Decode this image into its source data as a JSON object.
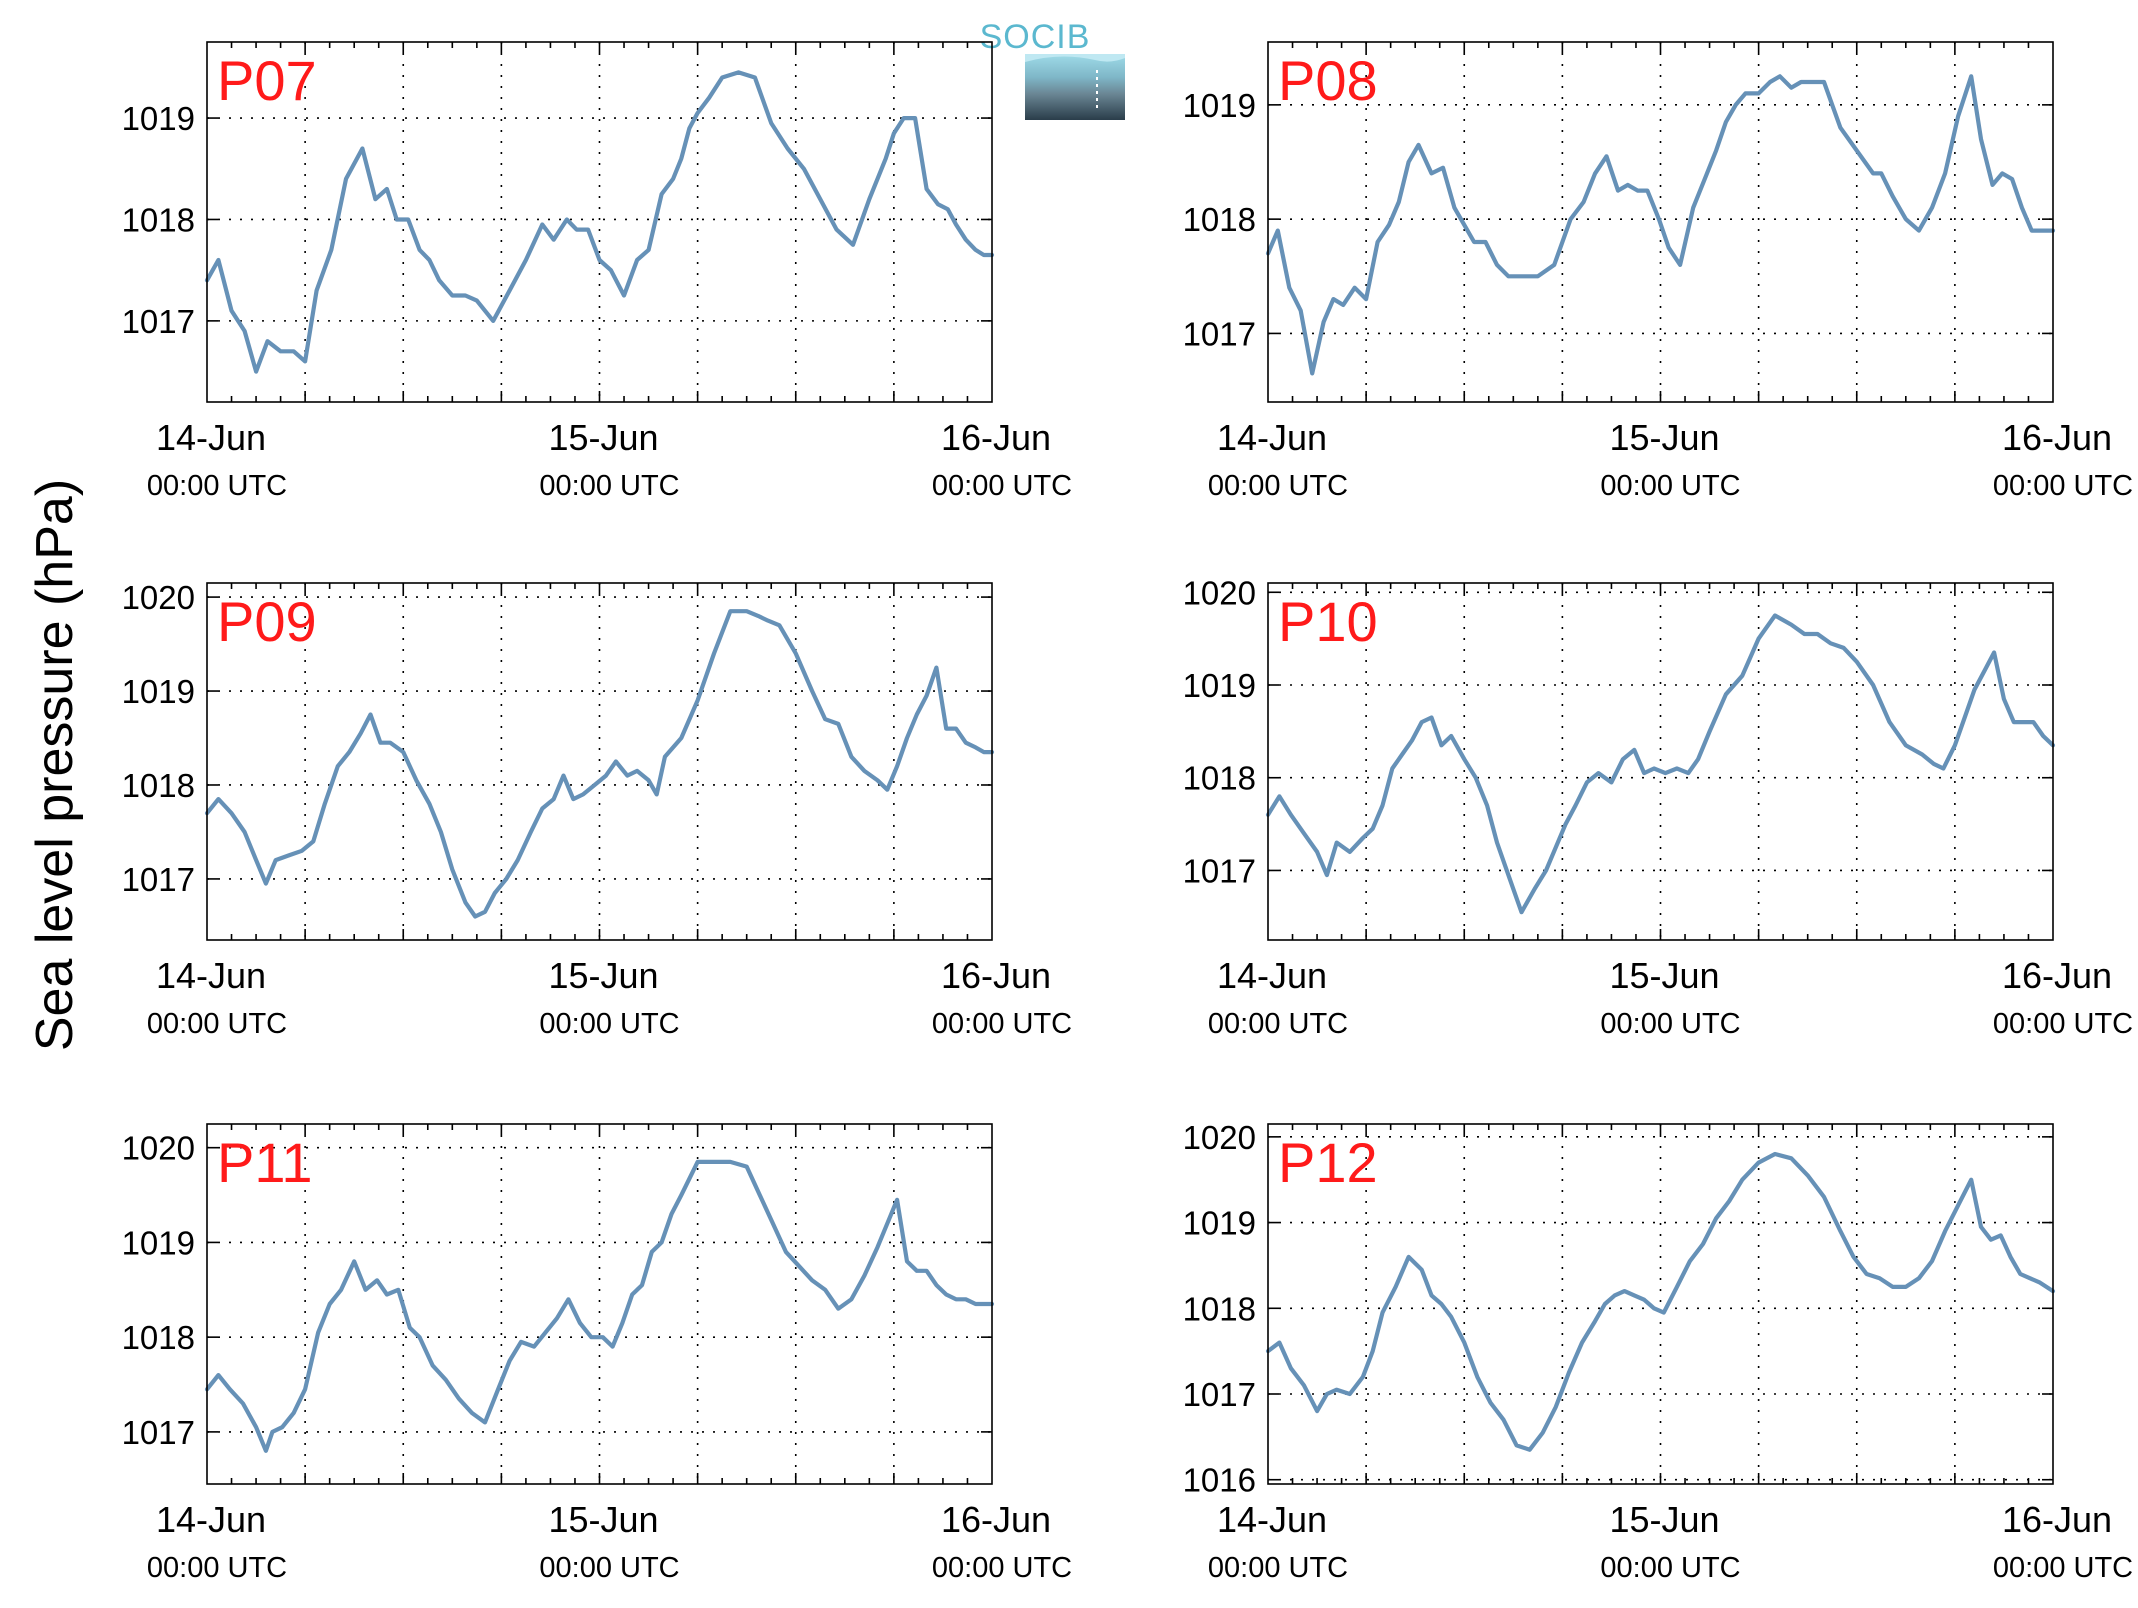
{
  "ylabel": "Sea level pressure (hPa)",
  "logo": {
    "text": "SOCIB"
  },
  "colors": {
    "line": "#6691b7",
    "station": "#ff1a1a",
    "frame": "#000000",
    "grid": "#000000"
  },
  "chart_data": [
    {
      "type": "line",
      "station": "P07",
      "ylim": [
        1016.2,
        1019.75
      ],
      "yticks": [
        1017,
        1018,
        1019
      ],
      "xlim": [
        0,
        48
      ],
      "x_major": [
        0,
        24,
        48
      ],
      "grid": true,
      "x_labels": [
        {
          "x": 0,
          "date": "14-Jun",
          "time": "00:00 UTC"
        },
        {
          "x": 24,
          "date": "15-Jun",
          "time": "00:00 UTC"
        },
        {
          "x": 48,
          "date": "16-Jun",
          "time": "00:00 UTC"
        }
      ],
      "x": [
        0,
        0.7,
        1.5,
        2.3,
        3,
        3.7,
        4.5,
        5.3,
        6,
        6.7,
        7.6,
        8.5,
        9.5,
        10.3,
        11,
        11.6,
        12.3,
        13,
        13.6,
        14.2,
        15,
        15.8,
        16.5,
        17.5,
        18.5,
        19.5,
        20.5,
        21.2,
        22,
        22.6,
        23.3,
        24,
        24.7,
        25.5,
        26.3,
        27,
        27.8,
        28.5,
        29,
        29.5,
        30,
        30.7,
        31.5,
        32.5,
        33.5,
        34.5,
        35.5,
        36.5,
        37.5,
        38.5,
        39.5,
        40.5,
        41.5,
        42,
        42.6,
        43.3,
        44,
        44.7,
        45.3,
        45.8,
        46.4,
        47,
        47.5,
        48
      ],
      "y": [
        1017.4,
        1017.6,
        1017.1,
        1016.9,
        1016.5,
        1016.8,
        1016.7,
        1016.7,
        1016.6,
        1017.3,
        1017.7,
        1018.4,
        1018.7,
        1018.2,
        1018.3,
        1018.0,
        1018.0,
        1017.7,
        1017.6,
        1017.4,
        1017.25,
        1017.25,
        1017.2,
        1017.0,
        1017.3,
        1017.6,
        1017.95,
        1017.8,
        1018.0,
        1017.9,
        1017.9,
        1017.6,
        1017.5,
        1017.25,
        1017.6,
        1017.7,
        1018.25,
        1018.4,
        1018.6,
        1018.9,
        1019.05,
        1019.2,
        1019.4,
        1019.45,
        1019.4,
        1018.95,
        1018.7,
        1018.5,
        1018.2,
        1017.9,
        1017.75,
        1018.2,
        1018.6,
        1018.85,
        1019.0,
        1019.0,
        1018.3,
        1018.15,
        1018.1,
        1017.95,
        1017.8,
        1017.7,
        1017.65,
        1017.65
      ]
    },
    {
      "type": "line",
      "station": "P08",
      "ylim": [
        1016.4,
        1019.55
      ],
      "yticks": [
        1017,
        1018,
        1019
      ],
      "xlim": [
        0,
        48
      ],
      "x_major": [
        0,
        24,
        48
      ],
      "grid": true,
      "x_labels": [
        {
          "x": 0,
          "date": "14-Jun",
          "time": "00:00 UTC"
        },
        {
          "x": 24,
          "date": "15-Jun",
          "time": "00:00 UTC"
        },
        {
          "x": 48,
          "date": "16-Jun",
          "time": "00:00 UTC"
        }
      ],
      "x": [
        0,
        0.6,
        1.3,
        2,
        2.7,
        3.4,
        4,
        4.6,
        5.3,
        6,
        6.7,
        7.4,
        8,
        8.6,
        9.2,
        10,
        10.7,
        11.4,
        12,
        12.6,
        13.3,
        14,
        14.7,
        15.5,
        16.5,
        17.5,
        18.5,
        19.3,
        20,
        20.7,
        21.4,
        22,
        22.6,
        23.2,
        23.9,
        24.5,
        25.2,
        26,
        26.7,
        27.4,
        28,
        28.6,
        29.2,
        30,
        30.7,
        31.3,
        32,
        32.6,
        33.3,
        34,
        35,
        36,
        37,
        37.5,
        38.2,
        39,
        39.8,
        40.6,
        41.4,
        42.2,
        43,
        43.6,
        44.3,
        44.9,
        45.5,
        46.1,
        46.7,
        47.3,
        48
      ],
      "y": [
        1017.7,
        1017.9,
        1017.4,
        1017.2,
        1016.65,
        1017.1,
        1017.3,
        1017.25,
        1017.4,
        1017.3,
        1017.8,
        1017.95,
        1018.15,
        1018.5,
        1018.65,
        1018.4,
        1018.45,
        1018.1,
        1017.95,
        1017.8,
        1017.8,
        1017.6,
        1017.5,
        1017.5,
        1017.5,
        1017.6,
        1018.0,
        1018.15,
        1018.4,
        1018.55,
        1018.25,
        1018.3,
        1018.25,
        1018.25,
        1018.0,
        1017.75,
        1017.6,
        1018.1,
        1018.35,
        1018.6,
        1018.85,
        1019.0,
        1019.1,
        1019.1,
        1019.2,
        1019.25,
        1019.15,
        1019.2,
        1019.2,
        1019.2,
        1018.8,
        1018.6,
        1018.4,
        1018.4,
        1018.2,
        1018.0,
        1017.9,
        1018.1,
        1018.4,
        1018.9,
        1019.25,
        1018.7,
        1018.3,
        1018.4,
        1018.35,
        1018.1,
        1017.9,
        1017.9,
        1017.9
      ]
    },
    {
      "type": "line",
      "station": "P09",
      "ylim": [
        1016.35,
        1020.15
      ],
      "yticks": [
        1017,
        1018,
        1019,
        1020
      ],
      "xlim": [
        0,
        48
      ],
      "x_major": [
        0,
        24,
        48
      ],
      "grid": true,
      "x_labels": [
        {
          "x": 0,
          "date": "14-Jun",
          "time": "00:00 UTC"
        },
        {
          "x": 24,
          "date": "15-Jun",
          "time": "00:00 UTC"
        },
        {
          "x": 48,
          "date": "16-Jun",
          "time": "00:00 UTC"
        }
      ],
      "x": [
        0,
        0.7,
        1.5,
        2.3,
        3,
        3.6,
        4.2,
        5,
        5.8,
        6.5,
        7.2,
        8,
        8.7,
        9.4,
        10,
        10.6,
        11.2,
        12,
        12.8,
        13.6,
        14.3,
        15,
        15.8,
        16.4,
        17,
        17.6,
        18.3,
        19,
        19.8,
        20.5,
        21.2,
        21.8,
        22.4,
        23,
        23.7,
        24.4,
        25,
        25.7,
        26.3,
        27,
        27.5,
        28,
        29,
        30,
        31,
        32,
        33,
        33.7,
        34.3,
        35,
        36,
        37,
        37.8,
        38.6,
        39.4,
        40.2,
        41,
        41.6,
        42.2,
        42.8,
        43.4,
        44,
        44.6,
        45.2,
        45.8,
        46.4,
        47,
        47.5,
        48
      ],
      "y": [
        1017.7,
        1017.85,
        1017.7,
        1017.5,
        1017.2,
        1016.95,
        1017.2,
        1017.25,
        1017.3,
        1017.4,
        1017.8,
        1018.2,
        1018.35,
        1018.55,
        1018.75,
        1018.45,
        1018.45,
        1018.35,
        1018.05,
        1017.8,
        1017.5,
        1017.1,
        1016.75,
        1016.6,
        1016.65,
        1016.85,
        1017.0,
        1017.2,
        1017.5,
        1017.75,
        1017.85,
        1018.1,
        1017.85,
        1017.9,
        1018.0,
        1018.1,
        1018.25,
        1018.1,
        1018.15,
        1018.05,
        1017.9,
        1018.3,
        1018.5,
        1018.9,
        1019.4,
        1019.85,
        1019.85,
        1019.8,
        1019.75,
        1019.7,
        1019.4,
        1019.0,
        1018.7,
        1018.65,
        1018.3,
        1018.15,
        1018.05,
        1017.95,
        1018.2,
        1018.5,
        1018.75,
        1018.95,
        1019.25,
        1018.6,
        1018.6,
        1018.45,
        1018.4,
        1018.35,
        1018.35
      ]
    },
    {
      "type": "line",
      "station": "P10",
      "ylim": [
        1016.25,
        1020.1
      ],
      "yticks": [
        1017,
        1018,
        1019,
        1020
      ],
      "xlim": [
        0,
        48
      ],
      "x_major": [
        0,
        24,
        48
      ],
      "grid": true,
      "x_labels": [
        {
          "x": 0,
          "date": "14-Jun",
          "time": "00:00 UTC"
        },
        {
          "x": 24,
          "date": "15-Jun",
          "time": "00:00 UTC"
        },
        {
          "x": 48,
          "date": "16-Jun",
          "time": "00:00 UTC"
        }
      ],
      "x": [
        0,
        0.7,
        1.4,
        2.2,
        3,
        3.6,
        4.2,
        5,
        5.8,
        6.4,
        7,
        7.6,
        8.2,
        8.8,
        9.4,
        10,
        10.6,
        11.2,
        12,
        12.7,
        13.4,
        14,
        14.7,
        15.5,
        16.3,
        17,
        17.6,
        18.2,
        18.8,
        19.5,
        20.2,
        21,
        21.7,
        22.4,
        23,
        23.6,
        24.3,
        25,
        25.7,
        26.3,
        27,
        28,
        29,
        30,
        31,
        32,
        32.8,
        33.6,
        34.4,
        35.2,
        36,
        37,
        38,
        39,
        40,
        40.7,
        41.3,
        42,
        42.6,
        43.2,
        43.8,
        44.4,
        45,
        45.6,
        46.2,
        46.8,
        47.4,
        48
      ],
      "y": [
        1017.6,
        1017.8,
        1017.6,
        1017.4,
        1017.2,
        1016.95,
        1017.3,
        1017.2,
        1017.35,
        1017.45,
        1017.7,
        1018.1,
        1018.25,
        1018.4,
        1018.6,
        1018.65,
        1018.35,
        1018.45,
        1018.2,
        1018.0,
        1017.7,
        1017.3,
        1016.95,
        1016.55,
        1016.8,
        1017.0,
        1017.25,
        1017.5,
        1017.7,
        1017.95,
        1018.05,
        1017.95,
        1018.2,
        1018.3,
        1018.05,
        1018.1,
        1018.05,
        1018.1,
        1018.05,
        1018.2,
        1018.5,
        1018.9,
        1019.1,
        1019.5,
        1019.75,
        1019.65,
        1019.55,
        1019.55,
        1019.45,
        1019.4,
        1019.25,
        1019.0,
        1018.6,
        1018.35,
        1018.25,
        1018.15,
        1018.1,
        1018.35,
        1018.65,
        1018.95,
        1019.15,
        1019.35,
        1018.85,
        1018.6,
        1018.6,
        1018.6,
        1018.45,
        1018.35
      ]
    },
    {
      "type": "line",
      "station": "P11",
      "ylim": [
        1016.45,
        1020.25
      ],
      "yticks": [
        1017,
        1018,
        1019,
        1020
      ],
      "xlim": [
        0,
        48
      ],
      "x_major": [
        0,
        24,
        48
      ],
      "grid": true,
      "x_labels": [
        {
          "x": 0,
          "date": "14-Jun",
          "time": "00:00 UTC"
        },
        {
          "x": 24,
          "date": "15-Jun",
          "time": "00:00 UTC"
        },
        {
          "x": 48,
          "date": "16-Jun",
          "time": "00:00 UTC"
        }
      ],
      "x": [
        0,
        0.7,
        1.4,
        2.2,
        3,
        3.6,
        4,
        4.6,
        5.3,
        6,
        6.8,
        7.5,
        8.2,
        9,
        9.7,
        10.4,
        11,
        11.7,
        12.4,
        13,
        13.8,
        14.6,
        15.4,
        16.2,
        17,
        17.8,
        18.5,
        19.2,
        20,
        20.7,
        21.4,
        22.1,
        22.8,
        23.5,
        24.2,
        24.8,
        25.4,
        26,
        26.6,
        27.2,
        27.8,
        28.4,
        29,
        30,
        31,
        32,
        33,
        33.8,
        34.6,
        35.4,
        36.2,
        37,
        37.8,
        38.6,
        39.4,
        40.2,
        41,
        41.6,
        42.2,
        42.8,
        43.4,
        44,
        44.6,
        45.2,
        45.8,
        46.4,
        47,
        47.5,
        48
      ],
      "y": [
        1017.45,
        1017.6,
        1017.45,
        1017.3,
        1017.05,
        1016.8,
        1017.0,
        1017.05,
        1017.2,
        1017.45,
        1018.05,
        1018.35,
        1018.5,
        1018.8,
        1018.5,
        1018.6,
        1018.45,
        1018.5,
        1018.1,
        1018.0,
        1017.7,
        1017.55,
        1017.35,
        1017.2,
        1017.1,
        1017.45,
        1017.75,
        1017.95,
        1017.9,
        1018.05,
        1018.2,
        1018.4,
        1018.15,
        1018.0,
        1018.0,
        1017.9,
        1018.15,
        1018.45,
        1018.55,
        1018.9,
        1019.0,
        1019.3,
        1019.5,
        1019.85,
        1019.85,
        1019.85,
        1019.8,
        1019.5,
        1019.2,
        1018.9,
        1018.75,
        1018.6,
        1018.5,
        1018.3,
        1018.4,
        1018.65,
        1018.95,
        1019.2,
        1019.45,
        1018.8,
        1018.7,
        1018.7,
        1018.55,
        1018.45,
        1018.4,
        1018.4,
        1018.35,
        1018.35,
        1018.35
      ]
    },
    {
      "type": "line",
      "station": "P12",
      "ylim": [
        1015.95,
        1020.15
      ],
      "yticks": [
        1016,
        1017,
        1018,
        1019,
        1020
      ],
      "xlim": [
        0,
        48
      ],
      "x_major": [
        0,
        24,
        48
      ],
      "grid": true,
      "x_labels": [
        {
          "x": 0,
          "date": "14-Jun",
          "time": "00:00 UTC"
        },
        {
          "x": 24,
          "date": "15-Jun",
          "time": "00:00 UTC"
        },
        {
          "x": 48,
          "date": "16-Jun",
          "time": "00:00 UTC"
        }
      ],
      "x": [
        0,
        0.7,
        1.4,
        2.2,
        3,
        3.6,
        4.2,
        5,
        5.8,
        6.4,
        7,
        7.8,
        8.6,
        9.4,
        10,
        10.6,
        11.2,
        12,
        12.8,
        13.6,
        14.4,
        15.2,
        16,
        16.8,
        17.6,
        18.4,
        19.2,
        20,
        20.6,
        21.2,
        21.8,
        22.4,
        23,
        23.6,
        24.2,
        25,
        25.8,
        26.6,
        27.4,
        28.2,
        29,
        30,
        31,
        32,
        33,
        34,
        35,
        35.8,
        36.6,
        37.4,
        38.2,
        39,
        39.8,
        40.6,
        41.4,
        42.2,
        43,
        43.6,
        44.2,
        44.8,
        45.4,
        46,
        46.6,
        47.2,
        48
      ],
      "y": [
        1017.5,
        1017.6,
        1017.3,
        1017.1,
        1016.8,
        1017.0,
        1017.05,
        1017.0,
        1017.2,
        1017.5,
        1017.95,
        1018.25,
        1018.6,
        1018.45,
        1018.15,
        1018.05,
        1017.9,
        1017.6,
        1017.2,
        1016.9,
        1016.7,
        1016.4,
        1016.35,
        1016.55,
        1016.85,
        1017.25,
        1017.6,
        1017.85,
        1018.05,
        1018.15,
        1018.2,
        1018.15,
        1018.1,
        1018.0,
        1017.95,
        1018.25,
        1018.55,
        1018.75,
        1019.05,
        1019.25,
        1019.5,
        1019.7,
        1019.8,
        1019.75,
        1019.55,
        1019.3,
        1018.9,
        1018.6,
        1018.4,
        1018.35,
        1018.25,
        1018.25,
        1018.35,
        1018.55,
        1018.9,
        1019.2,
        1019.5,
        1018.95,
        1018.8,
        1018.85,
        1018.6,
        1018.4,
        1018.35,
        1018.3,
        1018.2
      ]
    }
  ]
}
